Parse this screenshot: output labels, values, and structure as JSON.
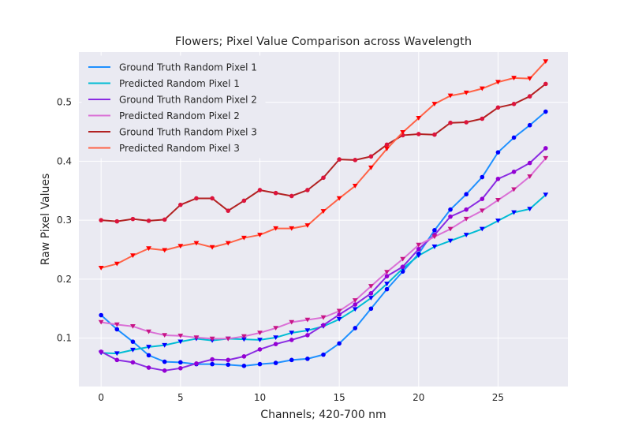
{
  "chart_data": {
    "type": "line",
    "title": "Flowers; Pixel Value Comparison across Wavelength",
    "xlabel": "Channels; 420-700 nm",
    "ylabel": "Raw Pixel Values",
    "xlim": [
      -1.4,
      29.4
    ],
    "ylim": [
      0.018,
      0.585
    ],
    "xticks": [
      0,
      5,
      10,
      15,
      20,
      25
    ],
    "yticks": [
      0.1,
      0.2,
      0.3,
      0.4,
      0.5
    ],
    "xtick_labels": [
      "0",
      "5",
      "10",
      "15",
      "20",
      "25"
    ],
    "ytick_labels": [
      "0.1",
      "0.2",
      "0.3",
      "0.4",
      "0.5"
    ],
    "grid": true,
    "legend_position": "upper-left",
    "x": [
      0,
      1,
      2,
      3,
      4,
      5,
      6,
      7,
      8,
      9,
      10,
      11,
      12,
      13,
      14,
      15,
      16,
      17,
      18,
      19,
      20,
      21,
      22,
      23,
      24,
      25,
      26,
      27,
      28
    ],
    "series": [
      {
        "name": "Ground Truth Random Pixel 1",
        "color": "#1e90ff",
        "marker": "circle",
        "marker_color": "#0000ff",
        "values": [
          0.139,
          0.115,
          0.094,
          0.071,
          0.06,
          0.059,
          0.056,
          0.056,
          0.055,
          0.053,
          0.056,
          0.058,
          0.063,
          0.065,
          0.072,
          0.091,
          0.117,
          0.15,
          0.183,
          0.213,
          0.243,
          0.283,
          0.318,
          0.344,
          0.373,
          0.415,
          0.44,
          0.461,
          0.484
        ]
      },
      {
        "name": "Predicted Random Pixel 1",
        "color": "#00bcd4",
        "marker": "triangle-down",
        "marker_color": "#0000ff",
        "values": [
          0.075,
          0.074,
          0.08,
          0.085,
          0.088,
          0.094,
          0.099,
          0.096,
          0.099,
          0.098,
          0.097,
          0.101,
          0.109,
          0.113,
          0.12,
          0.132,
          0.149,
          0.168,
          0.192,
          0.218,
          0.24,
          0.255,
          0.265,
          0.275,
          0.285,
          0.299,
          0.313,
          0.319,
          0.343
        ]
      },
      {
        "name": "Ground Truth Random Pixel 2",
        "color": "#8a2be2",
        "marker": "circle",
        "marker_color": "#9400d3",
        "values": [
          0.077,
          0.063,
          0.059,
          0.05,
          0.045,
          0.049,
          0.057,
          0.064,
          0.063,
          0.069,
          0.081,
          0.09,
          0.097,
          0.105,
          0.122,
          0.14,
          0.157,
          0.176,
          0.205,
          0.221,
          0.251,
          0.275,
          0.306,
          0.318,
          0.336,
          0.37,
          0.382,
          0.397,
          0.422
        ]
      },
      {
        "name": "Predicted Random Pixel 2",
        "color": "#da70d6",
        "marker": "triangle-down",
        "marker_color": "#c71585",
        "values": [
          0.127,
          0.123,
          0.12,
          0.111,
          0.105,
          0.104,
          0.101,
          0.099,
          0.099,
          0.103,
          0.109,
          0.117,
          0.127,
          0.131,
          0.135,
          0.146,
          0.164,
          0.188,
          0.212,
          0.234,
          0.258,
          0.272,
          0.285,
          0.302,
          0.316,
          0.334,
          0.352,
          0.374,
          0.405
        ]
      },
      {
        "name": "Ground Truth Random Pixel 3",
        "color": "#b22222",
        "marker": "circle",
        "marker_color": "#dc143c",
        "values": [
          0.3,
          0.298,
          0.302,
          0.299,
          0.301,
          0.326,
          0.337,
          0.337,
          0.316,
          0.333,
          0.351,
          0.346,
          0.341,
          0.351,
          0.372,
          0.403,
          0.402,
          0.408,
          0.428,
          0.444,
          0.446,
          0.445,
          0.465,
          0.466,
          0.472,
          0.491,
          0.497,
          0.51,
          0.531
        ]
      },
      {
        "name": "Predicted Random Pixel 3",
        "color": "#ff6347",
        "marker": "triangle-down",
        "marker_color": "#ff0000",
        "values": [
          0.219,
          0.226,
          0.24,
          0.252,
          0.249,
          0.256,
          0.261,
          0.254,
          0.261,
          0.27,
          0.275,
          0.286,
          0.286,
          0.291,
          0.315,
          0.337,
          0.358,
          0.389,
          0.421,
          0.449,
          0.473,
          0.497,
          0.511,
          0.516,
          0.523,
          0.534,
          0.541,
          0.54,
          0.569
        ]
      }
    ]
  }
}
